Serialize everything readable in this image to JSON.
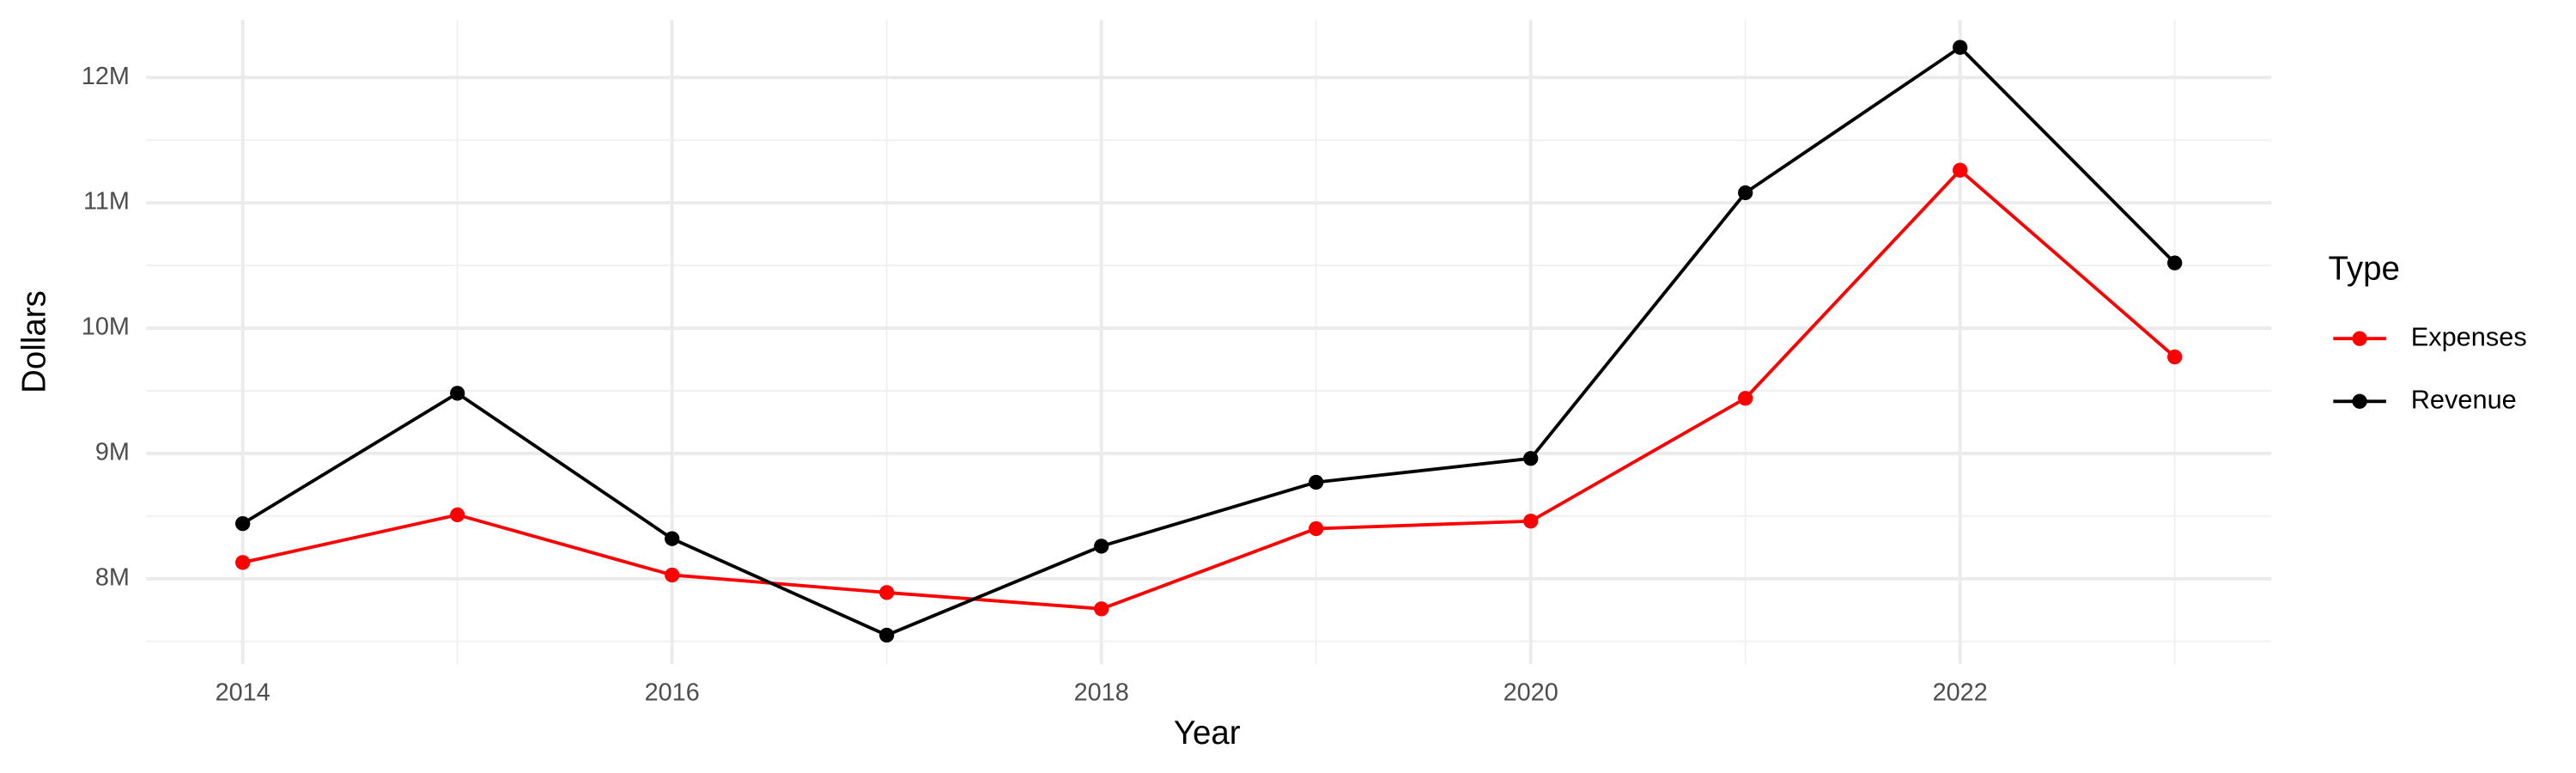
{
  "chart_data": {
    "type": "line",
    "x_label": "Year",
    "y_label": "Dollars",
    "legend_title": "Type",
    "x": [
      2014,
      2015,
      2016,
      2017,
      2018,
      2019,
      2020,
      2021,
      2022,
      2023
    ],
    "series": [
      {
        "name": "Expenses",
        "color": "#ff0000",
        "values": [
          8130000,
          8510000,
          8030000,
          7890000,
          7760000,
          8400000,
          8460000,
          9440000,
          11260000,
          9770000
        ]
      },
      {
        "name": "Revenue",
        "color": "#000000",
        "values": [
          8440000,
          9480000,
          8320000,
          7550000,
          8260000,
          8770000,
          8960000,
          11080000,
          12240000,
          10520000
        ]
      }
    ],
    "xlim": [
      2013.55,
      2023.45
    ],
    "xticks": [
      2014,
      2016,
      2018,
      2020,
      2022
    ],
    "ylim": [
      7320000,
      12460000
    ],
    "yticks": [
      {
        "value": 8000000,
        "label": "8M"
      },
      {
        "value": 9000000,
        "label": "9M"
      },
      {
        "value": 10000000,
        "label": "10M"
      },
      {
        "value": 11000000,
        "label": "11M"
      },
      {
        "value": 12000000,
        "label": "12M"
      }
    ],
    "grid": true,
    "minor_grid": true,
    "legend_position": "right"
  }
}
